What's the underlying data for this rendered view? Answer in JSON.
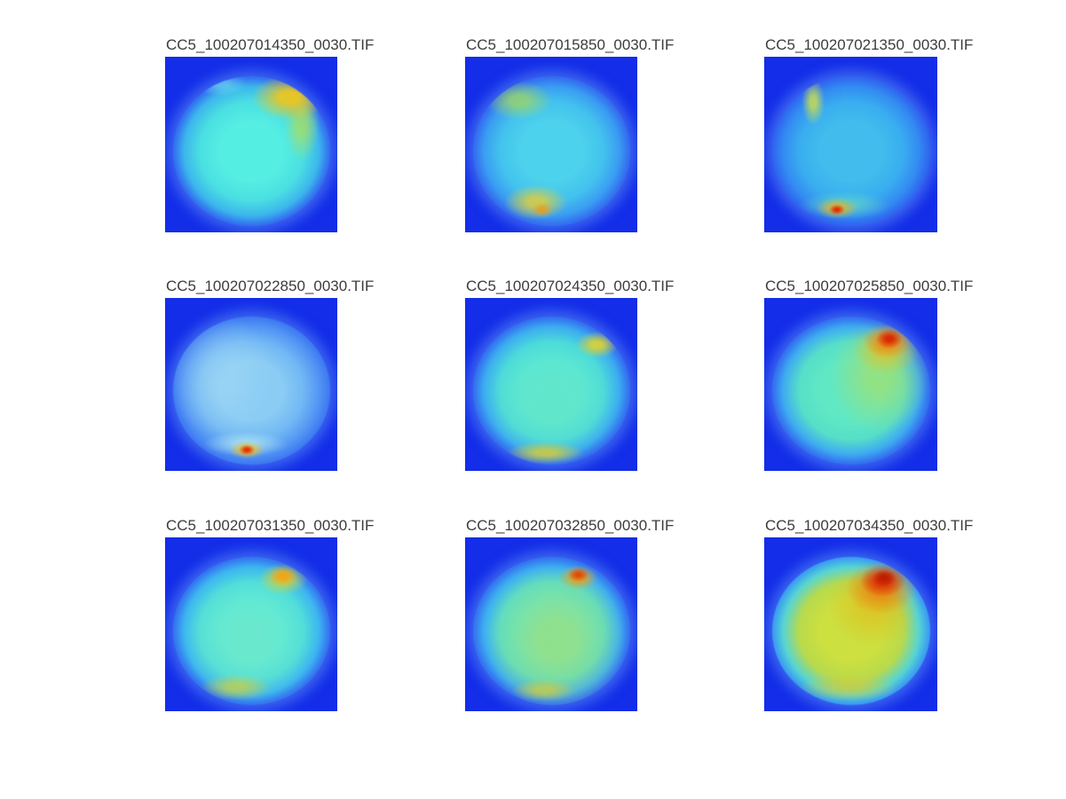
{
  "chart_data": {
    "type": "heatmap",
    "description": "3x3 montage of all-sky fisheye camera images rendered with a jet colormap; circular sky discs on a blue background, warmer colors (yellow/orange/red) indicate higher intensity.",
    "layout": {
      "rows": 3,
      "cols": 3,
      "colormap": "jet",
      "figure_background": "#ffffff",
      "panel_background": "#132de8",
      "title_color": "#3c3c3c"
    },
    "filenames": [
      "CC5_100207014350_0030.TIF",
      "CC5_100207015850_0030.TIF",
      "CC5_100207021350_0030.TIF",
      "CC5_100207022850_0030.TIF",
      "CC5_100207024350_0030.TIF",
      "CC5_100207025850_0030.TIF",
      "CC5_100207031350_0030.TIF",
      "CC5_100207032850_0030.TIF",
      "CC5_100207034350_0030.TIF"
    ],
    "panels": [
      {
        "title": "CC5_100207014350_0030.TIF",
        "summary": "bright cyan disc, yellow hotspot at upper right rim",
        "disc": {
          "inner": "#55eee2",
          "mid": "#4adfe2",
          "edge": "#3cb6ec",
          "rim": "#3373f0"
        },
        "spots": [
          {
            "x": "74%",
            "y": "14%",
            "rx": 42,
            "ry": 26,
            "color": "#f0c81c",
            "a": "ee"
          },
          {
            "x": "82%",
            "y": "32%",
            "rx": 20,
            "ry": 42,
            "color": "#b8e04c",
            "a": "aa"
          },
          {
            "x": "30%",
            "y": "5%",
            "rx": 30,
            "ry": 14,
            "color": "#7deef0",
            "a": "88"
          }
        ]
      },
      {
        "title": "CC5_100207015850_0030.TIF",
        "summary": "cyan-blue disc, green patch upper left, yellow patch bottom center",
        "disc": {
          "inner": "#4cd2ec",
          "mid": "#43c2ee",
          "edge": "#3a9df2",
          "rim": "#3370f0"
        },
        "spots": [
          {
            "x": "44%",
            "y": "89%",
            "rx": 12,
            "ry": 8,
            "color": "#ef9a18",
            "a": "cc"
          },
          {
            "x": "40%",
            "y": "84%",
            "rx": 36,
            "ry": 20,
            "color": "#e6cf33",
            "a": "cc"
          },
          {
            "x": "29%",
            "y": "16%",
            "rx": 38,
            "ry": 22,
            "color": "#aadd55",
            "a": "b3"
          }
        ]
      },
      {
        "title": "CC5_100207021350_0030.TIF",
        "summary": "blue-cyan disc, yellow streak upper left, red-orange spot bottom center",
        "disc": {
          "inner": "#41bcec",
          "mid": "#39adf0",
          "edge": "#338bf2",
          "rim": "#2f68f0"
        },
        "spots": [
          {
            "x": "41%",
            "y": "89%",
            "rx": 9,
            "ry": 6,
            "color": "#e02f06",
            "a": "ff"
          },
          {
            "x": "41%",
            "y": "88%",
            "rx": 24,
            "ry": 12,
            "color": "#eeb31c",
            "a": "cc"
          },
          {
            "x": "26%",
            "y": "17%",
            "rx": 13,
            "ry": 26,
            "color": "#cfe14a",
            "a": "cc"
          },
          {
            "x": "46%",
            "y": "86%",
            "rx": 52,
            "ry": 16,
            "color": "#67dfc0",
            "a": "99"
          }
        ]
      },
      {
        "title": "CC5_100207022850_0030.TIF",
        "summary": "pale washed-out blue disc, small red-orange hotspot at bottom center",
        "disc": {
          "inner": "#8accf4",
          "mid": "#72b8f4",
          "edge": "#5396f4",
          "rim": "#3f7cf2"
        },
        "spots": [
          {
            "x": "47%",
            "y": "90%",
            "rx": 9,
            "ry": 6,
            "color": "#e33207",
            "a": "ff"
          },
          {
            "x": "47%",
            "y": "90%",
            "rx": 20,
            "ry": 10,
            "color": "#f1c01c",
            "a": "dd"
          },
          {
            "x": "46%",
            "y": "86%",
            "rx": 48,
            "ry": 14,
            "color": "#bff0f0",
            "a": "99"
          },
          {
            "x": "30%",
            "y": "40%",
            "rx": 60,
            "ry": 70,
            "color": "#a4daf4",
            "a": "80"
          }
        ]
      },
      {
        "title": "CC5_100207024350_0030.TIF",
        "summary": "cyan-green disc, yellow patch upper right rim, yellow band at bottom edge",
        "disc": {
          "inner": "#58e8d6",
          "mid": "#4cdbda",
          "edge": "#3cadf0",
          "rim": "#3473f0"
        },
        "spots": [
          {
            "x": "79%",
            "y": "19%",
            "rx": 24,
            "ry": 15,
            "color": "#e3d42a",
            "a": "dd"
          },
          {
            "x": "46%",
            "y": "92%",
            "rx": 44,
            "ry": 13,
            "color": "#d8cc35",
            "a": "cc"
          },
          {
            "x": "50%",
            "y": "58%",
            "rx": 70,
            "ry": 66,
            "color": "#6ce4bc",
            "a": "73"
          }
        ]
      },
      {
        "title": "CC5_100207025850_0030.TIF",
        "summary": "cyan-green disc with yellow-green right side and strong red blob upper right",
        "disc": {
          "inner": "#60e8c4",
          "mid": "#57dfc8",
          "edge": "#3eacf0",
          "rim": "#3473f0"
        },
        "spots": [
          {
            "x": "74%",
            "y": "15%",
            "rx": 15,
            "ry": 11,
            "color": "#d92c04",
            "a": "ff"
          },
          {
            "x": "73%",
            "y": "17%",
            "rx": 27,
            "ry": 19,
            "color": "#ef8314",
            "a": "dd"
          },
          {
            "x": "72%",
            "y": "22%",
            "rx": 38,
            "ry": 28,
            "color": "#e6c41c",
            "a": "b3"
          },
          {
            "x": "68%",
            "y": "40%",
            "rx": 56,
            "ry": 64,
            "color": "#b2de5c",
            "a": "99"
          }
        ]
      },
      {
        "title": "CC5_100207031350_0030.TIF",
        "summary": "cyan disc with greenish center, orange spot upper right, yellow at bottom",
        "disc": {
          "inner": "#5aeada",
          "mid": "#4fdeda",
          "edge": "#3db6f0",
          "rim": "#3478f0"
        },
        "spots": [
          {
            "x": "70%",
            "y": "13%",
            "rx": 16,
            "ry": 11,
            "color": "#f2a414",
            "a": "ee"
          },
          {
            "x": "70%",
            "y": "15%",
            "rx": 28,
            "ry": 18,
            "color": "#d9d432",
            "a": "cc"
          },
          {
            "x": "40%",
            "y": "88%",
            "rx": 40,
            "ry": 15,
            "color": "#d1d03a",
            "a": "b3"
          },
          {
            "x": "48%",
            "y": "56%",
            "rx": 72,
            "ry": 72,
            "color": "#82e6ba",
            "a": "66"
          }
        ]
      },
      {
        "title": "CC5_100207032850_0030.TIF",
        "summary": "cyan-green disc with yellow-green center, orange-red spot upper right",
        "disc": {
          "inner": "#60e6c9",
          "mid": "#57ddc9",
          "edge": "#3eaff0",
          "rim": "#3476f0"
        },
        "spots": [
          {
            "x": "67%",
            "y": "12%",
            "rx": 12,
            "ry": 8,
            "color": "#e04d08",
            "a": "ff"
          },
          {
            "x": "67%",
            "y": "14%",
            "rx": 22,
            "ry": 14,
            "color": "#efa015",
            "a": "dd"
          },
          {
            "x": "45%",
            "y": "90%",
            "rx": 36,
            "ry": 13,
            "color": "#d6cd37",
            "a": "b3"
          },
          {
            "x": "53%",
            "y": "56%",
            "rx": 78,
            "ry": 82,
            "color": "#b7dc5e",
            "a": "8c"
          }
        ]
      },
      {
        "title": "CC5_100207034350_0030.TIF",
        "summary": "yellow-green disc with cyan rim and large deep-red blob upper right",
        "disc": {
          "inner": "#cce040",
          "mid": "#b8da4c",
          "edge": "#57d5d2",
          "rim": "#3ba0f0"
        },
        "spots": [
          {
            "x": "71%",
            "y": "14%",
            "rx": 13,
            "ry": 9,
            "color": "#bf1e02",
            "a": "ff"
          },
          {
            "x": "70%",
            "y": "16%",
            "rx": 26,
            "ry": 18,
            "color": "#d92a03",
            "a": "ee"
          },
          {
            "x": "69%",
            "y": "21%",
            "rx": 40,
            "ry": 30,
            "color": "#ec7b0e",
            "a": "cc"
          },
          {
            "x": "64%",
            "y": "32%",
            "rx": 52,
            "ry": 48,
            "color": "#e2ba18",
            "a": "99"
          },
          {
            "x": "48%",
            "y": "88%",
            "rx": 55,
            "ry": 16,
            "color": "#d9cb30",
            "a": "99"
          }
        ]
      }
    ]
  }
}
